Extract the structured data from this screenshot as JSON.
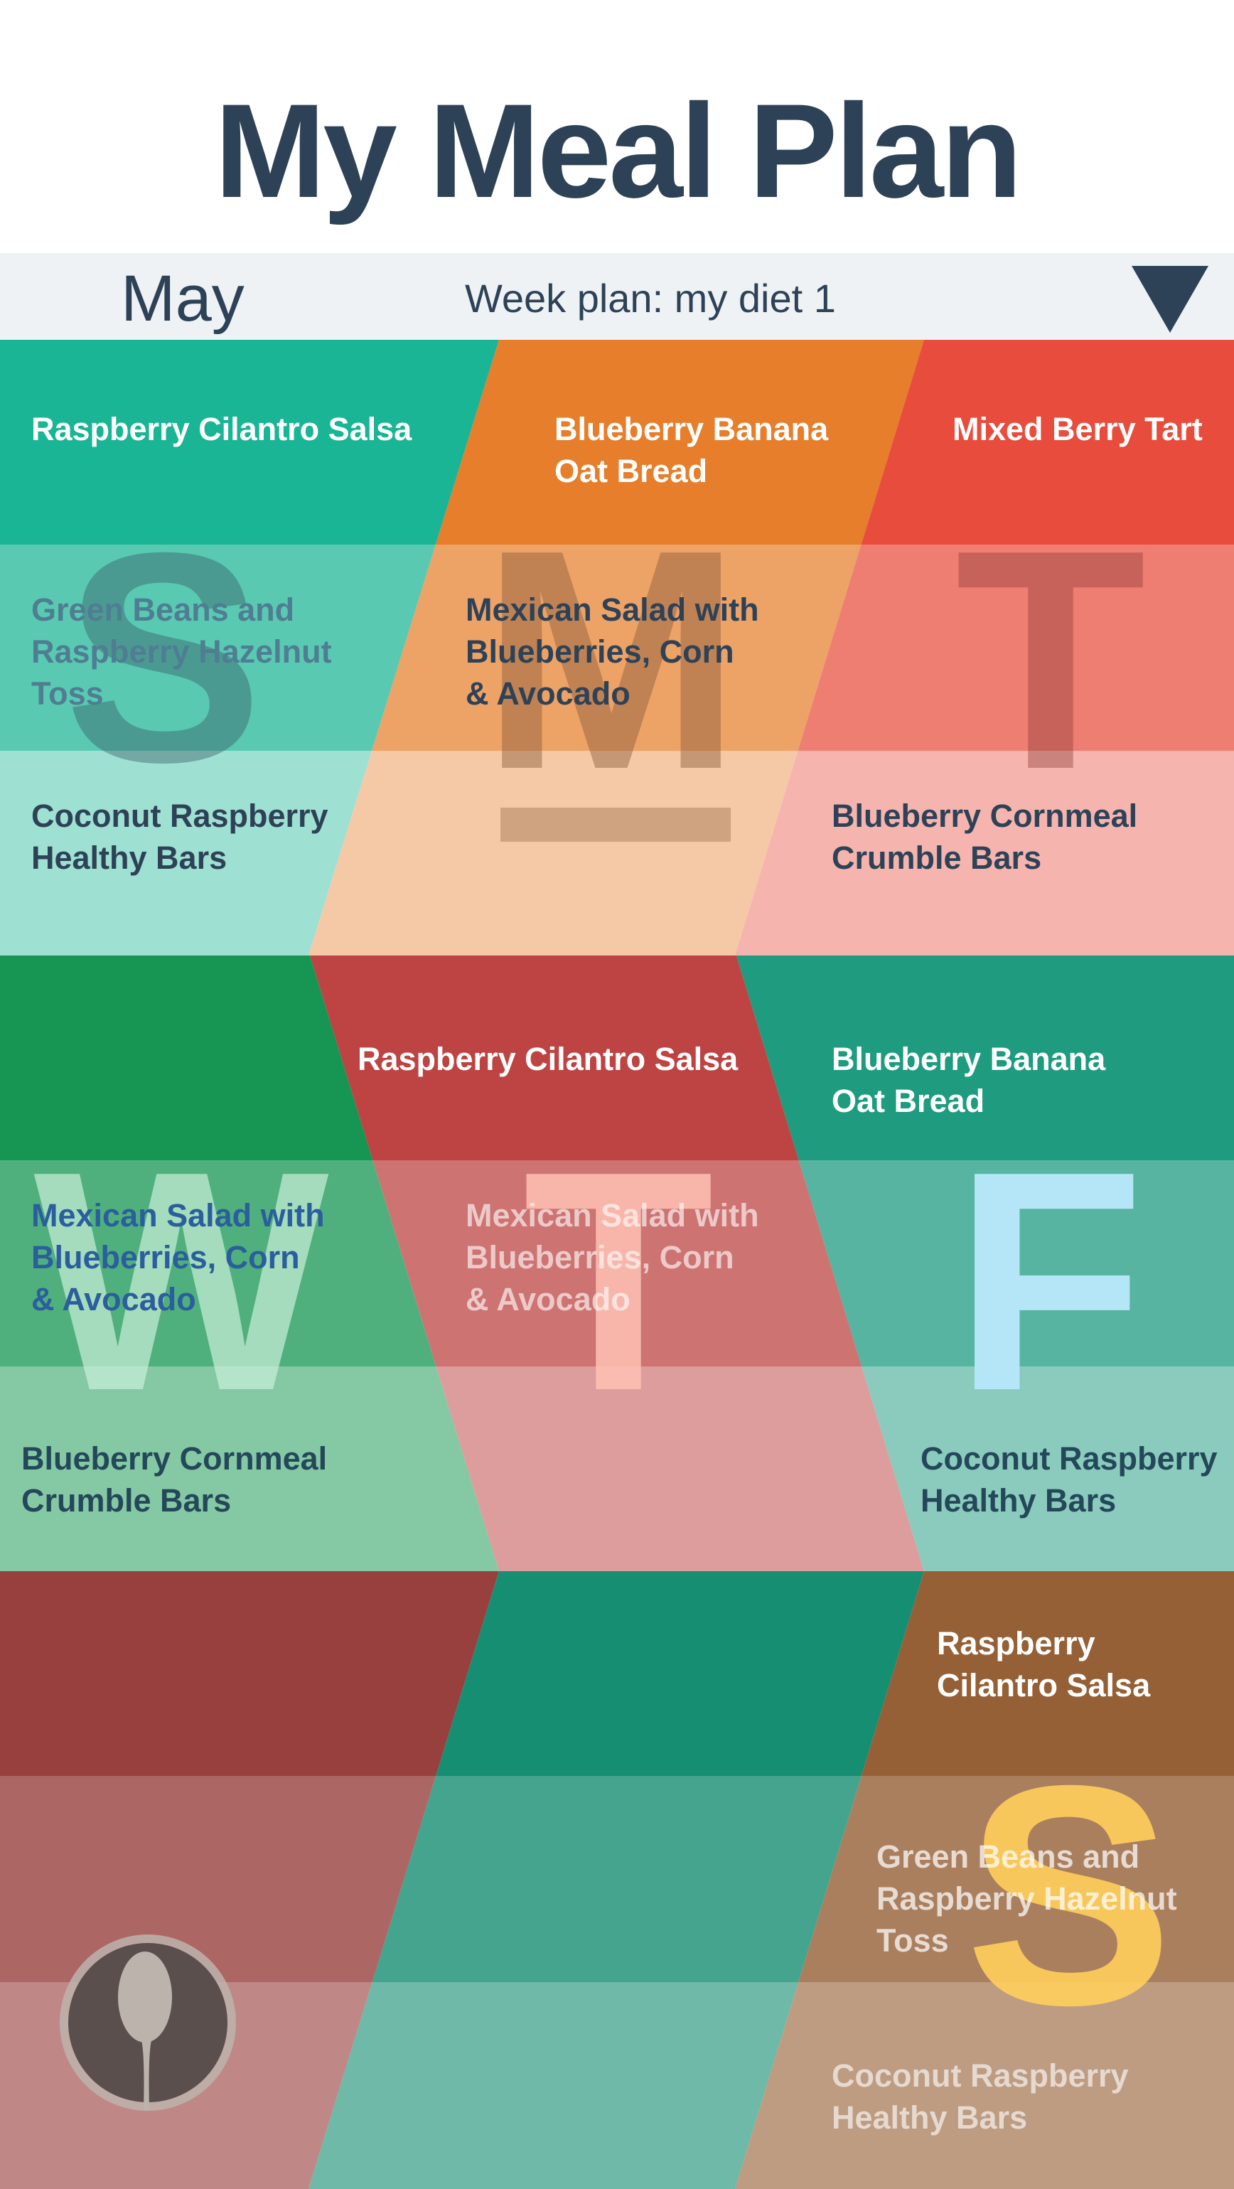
{
  "header": {
    "title": "My Meal Plan"
  },
  "bar": {
    "month": "May",
    "plan_label": "Week plan: my diet 1"
  },
  "colors": {
    "title": "#2e4257",
    "bar_bg": "#eef2f5",
    "teal": "#1ab595",
    "orange": "#e67e2b",
    "red": "#e84c3c",
    "green": "#169652",
    "crimson": "#bd4442",
    "sea": "#1f9b80",
    "maroon": "#98403e",
    "emerald": "#168e72",
    "brown": "#956036"
  },
  "days": {
    "sun": {
      "letter": "S",
      "meals": [
        "Raspberry Cilantro Salsa",
        "Green Beans and\nRaspberry Hazelnut\nToss",
        "Coconut Raspberry\nHealthy Bars"
      ]
    },
    "mon": {
      "letter": "M",
      "meals": [
        "Blueberry Banana\nOat Bread",
        "Mexican Salad with\nBlueberries, Corn\n& Avocado"
      ]
    },
    "tue": {
      "letter": "T",
      "meals": [
        "Mixed Berry Tart",
        "Blueberry Cornmeal\nCrumble Bars"
      ]
    },
    "wed": {
      "letter": "W",
      "meals": [
        "Mexican Salad with\nBlueberries, Corn\n& Avocado",
        "Blueberry Cornmeal\nCrumble Bars"
      ]
    },
    "thu": {
      "letter": "T",
      "meals": [
        "Raspberry Cilantro Salsa",
        "Mexican Salad with\nBlueberries, Corn\n& Avocado"
      ]
    },
    "fri": {
      "letter": "F",
      "meals": [
        "Blueberry Banana\nOat Bread",
        "Coconut Raspberry\nHealthy Bars"
      ]
    },
    "sat": {
      "letter": "S",
      "meals": [
        "Raspberry\nCilantro Salsa",
        "Green Beans and\nRaspberry Hazelnut\nToss",
        "Coconut Raspberry\nHealthy Bars"
      ]
    }
  },
  "icons": {
    "dropdown": "triangle-down-icon",
    "menu": "spoon-icon"
  }
}
